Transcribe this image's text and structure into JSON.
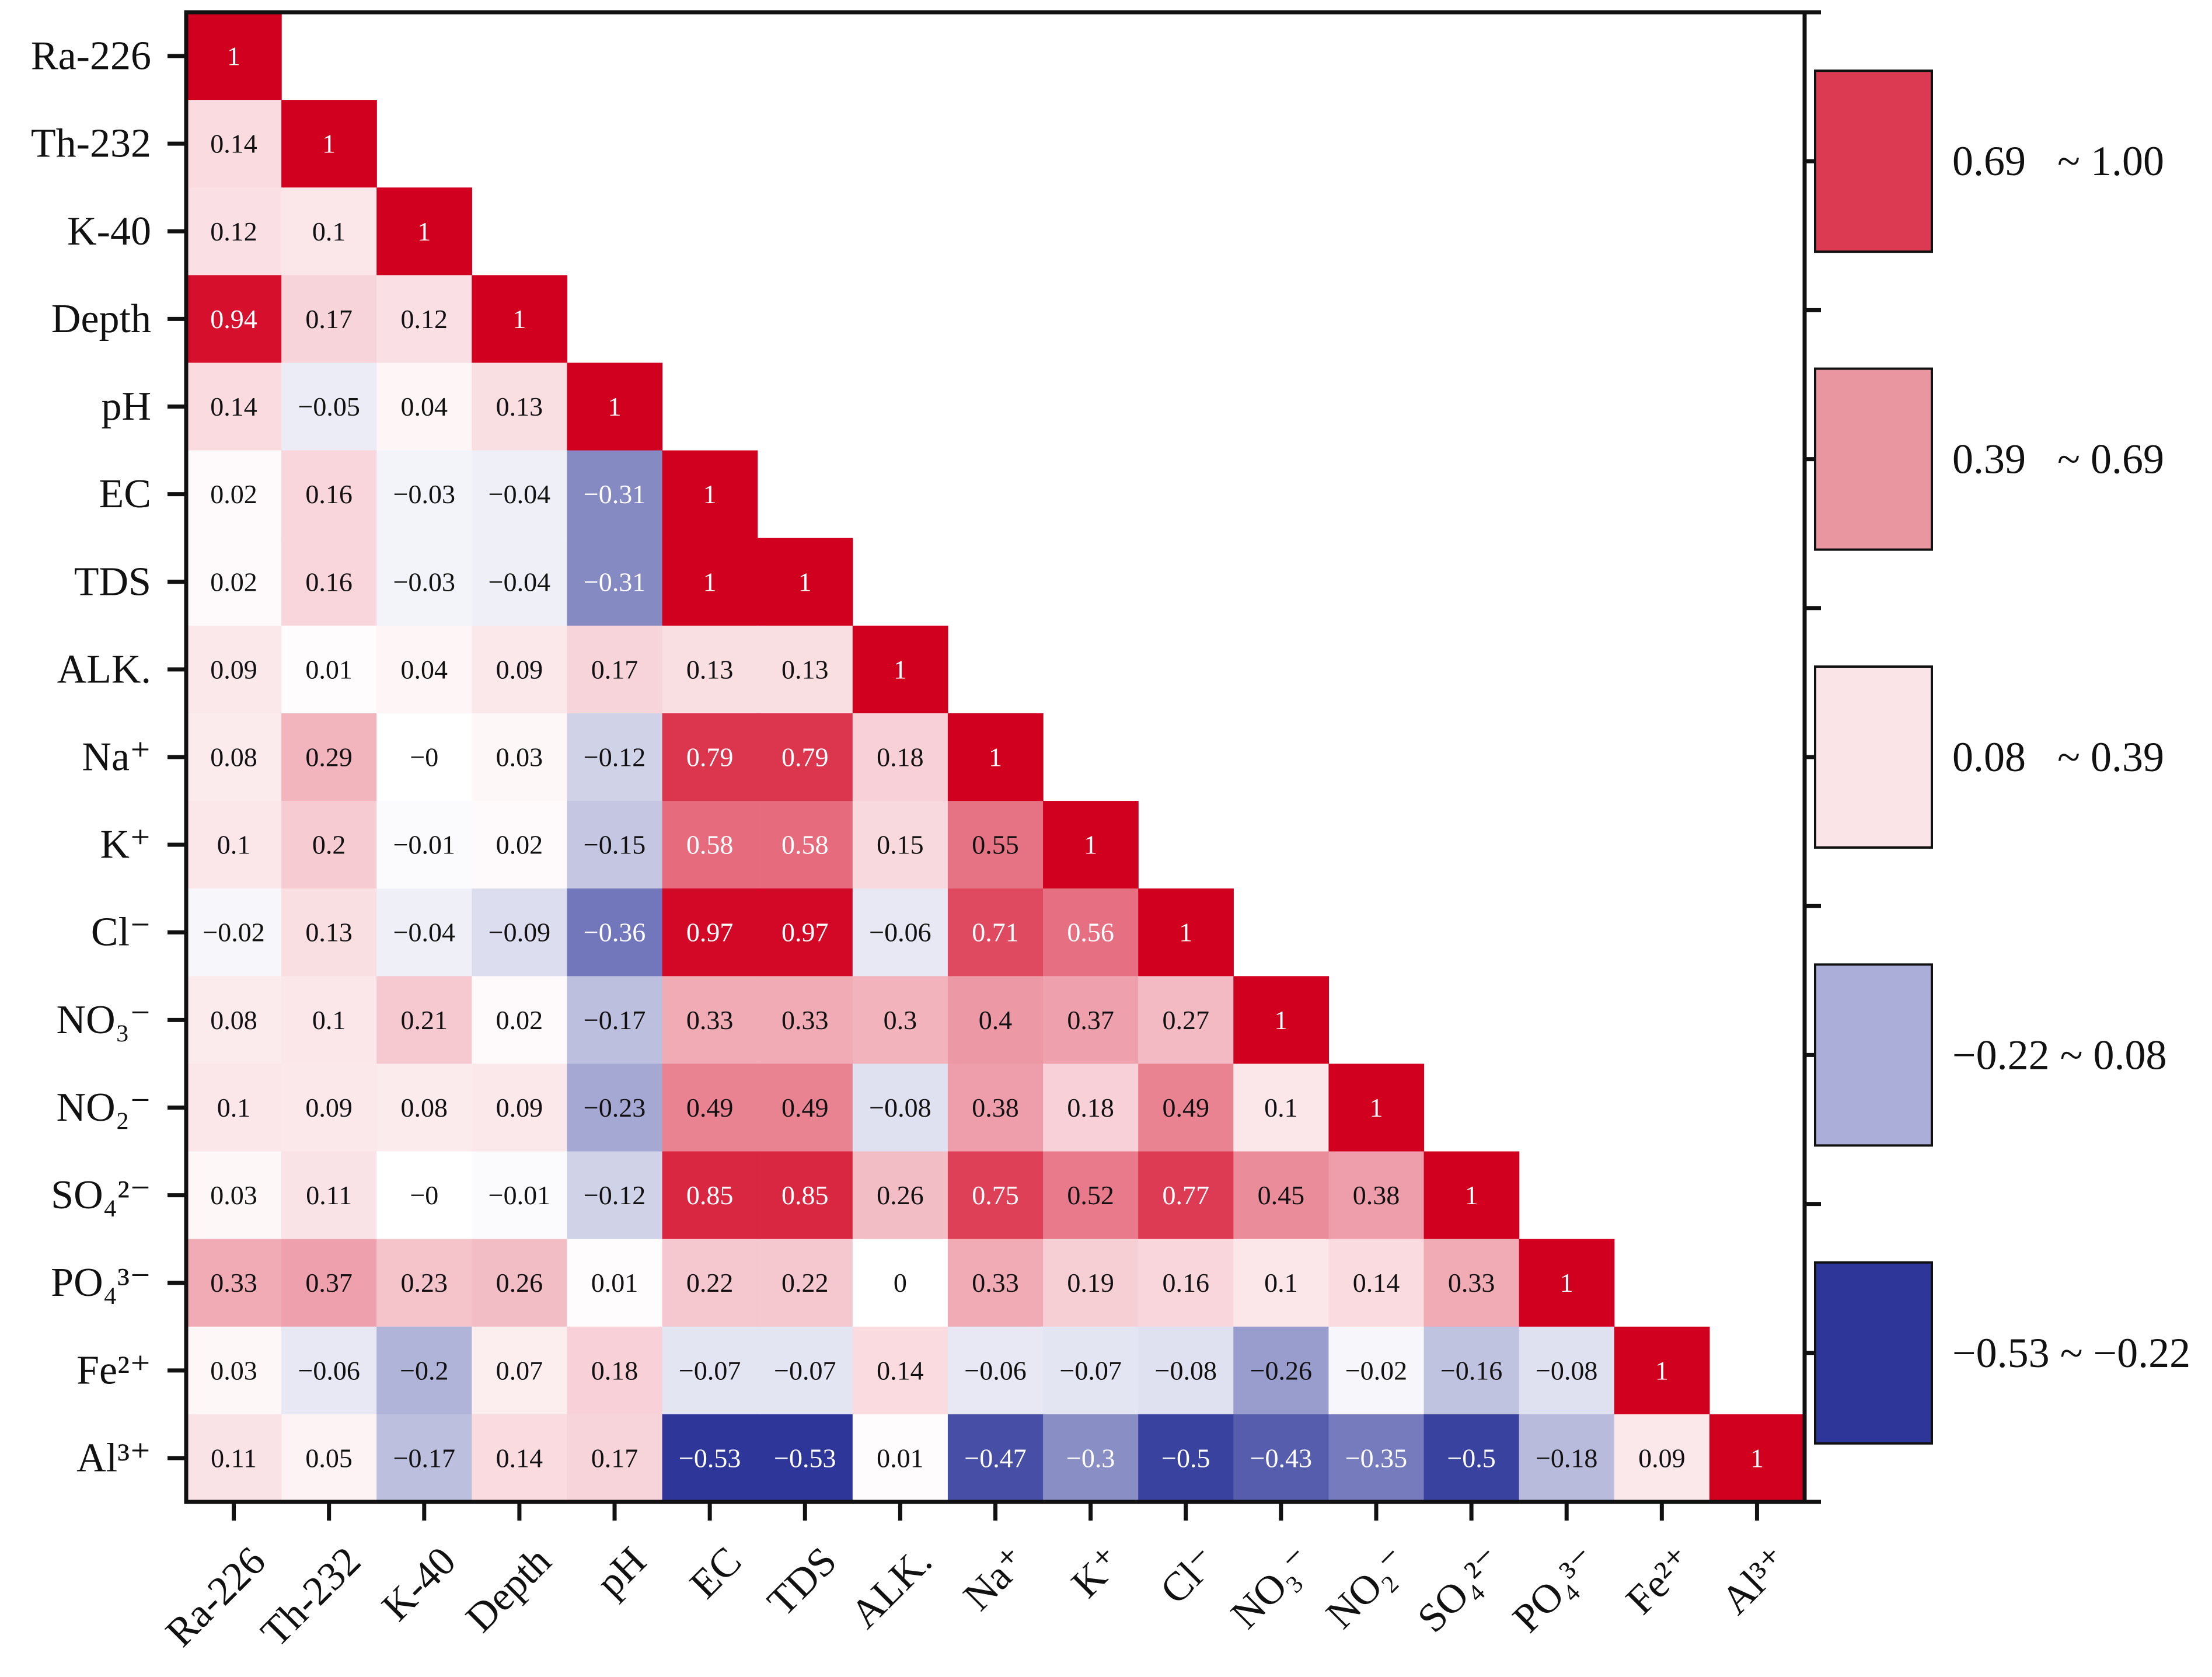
{
  "chart_data": {
    "type": "heatmap",
    "title": "",
    "variables": [
      "Ra-226",
      "Th-232",
      "K-40",
      "Depth",
      "pH",
      "EC",
      "TDS",
      "ALK.",
      "Na⁺",
      "K⁺",
      "Cl⁻",
      "NO₃⁻",
      "NO₂⁻",
      "SO₄²⁻",
      "PO₄³⁻",
      "Fe²⁺",
      "Al³⁺"
    ],
    "matrix_lower_triangle": [
      [
        "1"
      ],
      [
        "0.14",
        "1"
      ],
      [
        "0.12",
        "0.1",
        "1"
      ],
      [
        "0.94",
        "0.17",
        "0.12",
        "1"
      ],
      [
        "0.14",
        "−0.05",
        "0.04",
        "0.13",
        "1"
      ],
      [
        "0.02",
        "0.16",
        "−0.03",
        "−0.04",
        "−0.31",
        "1"
      ],
      [
        "0.02",
        "0.16",
        "−0.03",
        "−0.04",
        "−0.31",
        "1",
        "1"
      ],
      [
        "0.09",
        "0.01",
        "0.04",
        "0.09",
        "0.17",
        "0.13",
        "0.13",
        "1"
      ],
      [
        "0.08",
        "0.29",
        "−0",
        "0.03",
        "−0.12",
        "0.79",
        "0.79",
        "0.18",
        "1"
      ],
      [
        "0.1",
        "0.2",
        "−0.01",
        "0.02",
        "−0.15",
        "0.58",
        "0.58",
        "0.15",
        "0.55",
        "1"
      ],
      [
        "−0.02",
        "0.13",
        "−0.04",
        "−0.09",
        "−0.36",
        "0.97",
        "0.97",
        "−0.06",
        "0.71",
        "0.56",
        "1"
      ],
      [
        "0.08",
        "0.1",
        "0.21",
        "0.02",
        "−0.17",
        "0.33",
        "0.33",
        "0.3",
        "0.4",
        "0.37",
        "0.27",
        "1"
      ],
      [
        "0.1",
        "0.09",
        "0.08",
        "0.09",
        "−0.23",
        "0.49",
        "0.49",
        "−0.08",
        "0.38",
        "0.18",
        "0.49",
        "0.1",
        "1"
      ],
      [
        "0.03",
        "0.11",
        "−0",
        "−0.01",
        "−0.12",
        "0.85",
        "0.85",
        "0.26",
        "0.75",
        "0.52",
        "0.77",
        "0.45",
        "0.38",
        "1"
      ],
      [
        "0.33",
        "0.37",
        "0.23",
        "0.26",
        "0.01",
        "0.22",
        "0.22",
        "0",
        "0.33",
        "0.19",
        "0.16",
        "0.1",
        "0.14",
        "0.33",
        "1"
      ],
      [
        "0.03",
        "−0.06",
        "−0.2",
        "0.07",
        "0.18",
        "−0.07",
        "−0.07",
        "0.14",
        "−0.06",
        "−0.07",
        "−0.08",
        "−0.26",
        "−0.02",
        "−0.16",
        "−0.08",
        "1"
      ],
      [
        "0.11",
        "0.05",
        "−0.17",
        "0.14",
        "0.17",
        "−0.53",
        "−0.53",
        "0.01",
        "−0.47",
        "−0.3",
        "−0.5",
        "−0.43",
        "−0.35",
        "−0.5",
        "−0.18",
        "0.09",
        "1"
      ]
    ],
    "legend": [
      {
        "label": "0.69   ~ 1.00",
        "color": "#dc3a52"
      },
      {
        "label": "0.39   ~ 0.69",
        "color": "#ea96a1"
      },
      {
        "label": "0.08   ~ 0.39",
        "color": "#fbe4e8"
      },
      {
        "label": "−0.22 ~ 0.08",
        "color": "#aaaed8"
      },
      {
        "label": "−0.53 ~ −0.22",
        "color": "#2e3799"
      }
    ],
    "color_range": [
      -0.53,
      1.0
    ],
    "color_scale": [
      "#2e3799",
      "#ffffff",
      "#d2001f"
    ],
    "legend_placement": "right",
    "grid": false
  }
}
